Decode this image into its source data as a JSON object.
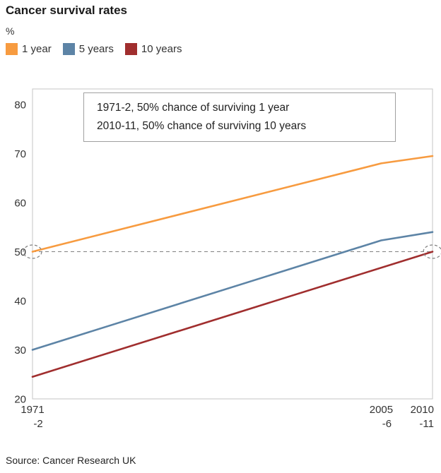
{
  "header": {
    "title": "Cancer survival rates",
    "unit": "%"
  },
  "legend": [
    {
      "label": "1 year",
      "color": "#f79b40"
    },
    {
      "label": "5 years",
      "color": "#5d84a6"
    },
    {
      "label": "10 years",
      "color": "#a02e2e"
    }
  ],
  "annotation": {
    "line1": "1971-2, 50% chance of surviving 1 year",
    "line2": "2010-11, 50% chance of surviving 10 years"
  },
  "source": "Source: Cancer Research UK",
  "chart_data": {
    "type": "line",
    "title": "Cancer survival rates",
    "ylabel": "%",
    "xlim": [
      1971,
      2010
    ],
    "ylim": [
      20,
      80
    ],
    "yticks": [
      20,
      30,
      40,
      50,
      60,
      70,
      80
    ],
    "x_ticks": [
      {
        "x": 1971,
        "top": "1971",
        "bottom": "-2"
      },
      {
        "x": 2005,
        "top": "2005",
        "bottom": "-6"
      },
      {
        "x": 2010,
        "top": "2010",
        "bottom": "-11"
      }
    ],
    "series": [
      {
        "name": "1 year",
        "color": "#f79b40",
        "points": [
          [
            1971,
            50
          ],
          [
            2005,
            68
          ],
          [
            2010,
            69.5
          ]
        ]
      },
      {
        "name": "5 years",
        "color": "#5d84a6",
        "points": [
          [
            1971,
            30
          ],
          [
            2005,
            52.3
          ],
          [
            2010,
            54
          ]
        ]
      },
      {
        "name": "10 years",
        "color": "#a02e2e",
        "points": [
          [
            1971,
            24.5
          ],
          [
            2010,
            50
          ]
        ]
      }
    ],
    "reference_line": {
      "y": 50,
      "style": "dashed"
    },
    "highlight_circles": [
      {
        "x": 1971,
        "y": 50
      },
      {
        "x": 2010,
        "y": 50
      }
    ],
    "grid": false,
    "legend_position": "top"
  }
}
